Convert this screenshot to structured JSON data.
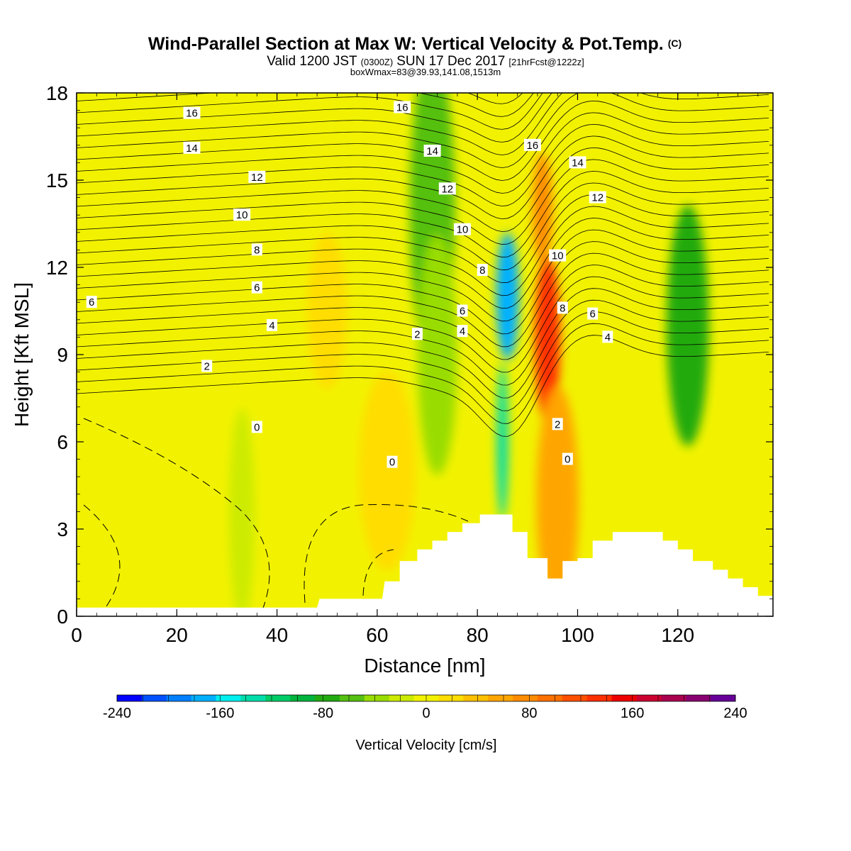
{
  "header": {
    "title_main": "Wind-Parallel Section at Max W: Vertical Velocity & Pot.Temp.",
    "title_mark": "(C)",
    "subtitle_parts": [
      "Valid 1200 JST",
      "(0300Z)",
      "SUN 17 Dec 2017",
      "[21hrFcst@1222z]"
    ],
    "subtitle2": "boxWmax=83@39.93,141.08,1513m"
  },
  "colorbar": {
    "label": "Vertical Velocity [cm/s]",
    "tick_labels": [
      "-240",
      "-160",
      "-80",
      "0",
      "80",
      "160",
      "240"
    ],
    "levels": [
      -240,
      -220,
      -200,
      -180,
      -160,
      -140,
      -120,
      -100,
      -80,
      -60,
      -40,
      -20,
      0,
      20,
      40,
      60,
      80,
      100,
      120,
      140,
      160,
      180,
      200,
      220,
      240
    ],
    "colors": [
      "#0000ff",
      "#0050ff",
      "#0080ff",
      "#00b0ff",
      "#00eeee",
      "#00ddaa",
      "#00cc66",
      "#00b33c",
      "#22aa11",
      "#55c011",
      "#99dd00",
      "#cceb00",
      "#f2f200",
      "#ffdd00",
      "#ffc000",
      "#ffa500",
      "#ff8c00",
      "#ff7000",
      "#ff5000",
      "#ff3000",
      "#ee0000",
      "#cc0030",
      "#aa0050",
      "#880070",
      "#660099"
    ]
  },
  "chart_data": {
    "type": "heatmap",
    "xlabel": "Distance [nm]",
    "ylabel": "Height [Kft MSL]",
    "xlim": [
      0,
      139
    ],
    "ylim": [
      0,
      18
    ],
    "x_ticks": [
      0,
      20,
      40,
      60,
      80,
      100,
      120
    ],
    "y_ticks": [
      0,
      3,
      6,
      9,
      12,
      15,
      18
    ],
    "field_name": "Vertical Velocity [cm/s]",
    "field_features": [
      {
        "x": 86,
        "y": 11,
        "value": -170
      },
      {
        "x": 85,
        "y": 6,
        "value": -130
      },
      {
        "x": 94,
        "y": 9.5,
        "value": 150
      },
      {
        "x": 93,
        "y": 14,
        "value": 90
      },
      {
        "x": 71,
        "y": 14,
        "value": -60
      },
      {
        "x": 72,
        "y": 9,
        "value": -40
      },
      {
        "x": 122,
        "y": 10,
        "value": -70
      },
      {
        "x": 50,
        "y": 10.5,
        "value": 30
      },
      {
        "x": 62,
        "y": 5,
        "value": 35
      },
      {
        "x": 96,
        "y": 4,
        "value": 60
      },
      {
        "x": 33,
        "y": 3.5,
        "value": -20
      }
    ],
    "contour_labels": [
      {
        "x": 23,
        "y": 17.3,
        "text": "16"
      },
      {
        "x": 65,
        "y": 17.5,
        "text": "16"
      },
      {
        "x": 91,
        "y": 16.2,
        "text": "16"
      },
      {
        "x": 23,
        "y": 16.1,
        "text": "14"
      },
      {
        "x": 71,
        "y": 16.0,
        "text": "14"
      },
      {
        "x": 100,
        "y": 15.6,
        "text": "14"
      },
      {
        "x": 36,
        "y": 15.1,
        "text": "12"
      },
      {
        "x": 74,
        "y": 14.7,
        "text": "12"
      },
      {
        "x": 104,
        "y": 14.4,
        "text": "12"
      },
      {
        "x": 33,
        "y": 13.8,
        "text": "10"
      },
      {
        "x": 77,
        "y": 13.3,
        "text": "10"
      },
      {
        "x": 96,
        "y": 12.4,
        "text": "10"
      },
      {
        "x": 36,
        "y": 12.6,
        "text": "8"
      },
      {
        "x": 81,
        "y": 11.9,
        "text": "8"
      },
      {
        "x": 97,
        "y": 10.6,
        "text": "8"
      },
      {
        "x": 3,
        "y": 10.8,
        "text": "6"
      },
      {
        "x": 36,
        "y": 11.3,
        "text": "6"
      },
      {
        "x": 77,
        "y": 10.5,
        "text": "6"
      },
      {
        "x": 103,
        "y": 10.4,
        "text": "6"
      },
      {
        "x": 39,
        "y": 10.0,
        "text": "4"
      },
      {
        "x": 77,
        "y": 9.8,
        "text": "4"
      },
      {
        "x": 106,
        "y": 9.6,
        "text": "4"
      },
      {
        "x": 26,
        "y": 8.6,
        "text": "2"
      },
      {
        "x": 68,
        "y": 9.7,
        "text": "2"
      },
      {
        "x": 96,
        "y": 6.6,
        "text": "2"
      },
      {
        "x": 36,
        "y": 6.5,
        "text": "0"
      },
      {
        "x": 63,
        "y": 5.3,
        "text": "0"
      },
      {
        "x": 98,
        "y": 5.4,
        "text": "0"
      }
    ],
    "terrain_profile": [
      [
        0,
        0.3
      ],
      [
        48,
        0.3
      ],
      [
        48.5,
        0.6
      ],
      [
        61,
        0.6
      ],
      [
        61.5,
        1.2
      ],
      [
        64.5,
        1.2
      ],
      [
        64.5,
        1.9
      ],
      [
        68,
        1.9
      ],
      [
        68,
        2.3
      ],
      [
        71,
        2.3
      ],
      [
        71,
        2.6
      ],
      [
        74,
        2.6
      ],
      [
        74,
        2.9
      ],
      [
        77,
        2.9
      ],
      [
        77,
        3.2
      ],
      [
        80.5,
        3.2
      ],
      [
        80.5,
        3.5
      ],
      [
        87,
        3.5
      ],
      [
        87,
        2.9
      ],
      [
        90,
        2.9
      ],
      [
        90,
        2.0
      ],
      [
        94,
        2.0
      ],
      [
        94,
        1.3
      ],
      [
        97,
        1.3
      ],
      [
        97,
        1.9
      ],
      [
        100,
        1.9
      ],
      [
        100,
        2.0
      ],
      [
        103,
        2.0
      ],
      [
        103,
        2.6
      ],
      [
        107,
        2.6
      ],
      [
        107,
        2.9
      ],
      [
        117,
        2.9
      ],
      [
        117,
        2.6
      ],
      [
        120,
        2.6
      ],
      [
        120,
        2.3
      ],
      [
        123,
        2.3
      ],
      [
        123,
        1.9
      ],
      [
        127,
        1.9
      ],
      [
        127,
        1.6
      ],
      [
        130,
        1.6
      ],
      [
        130,
        1.3
      ],
      [
        133,
        1.3
      ],
      [
        133,
        1.0
      ],
      [
        136,
        1.0
      ],
      [
        136,
        0.7
      ],
      [
        139,
        0.7
      ]
    ]
  }
}
